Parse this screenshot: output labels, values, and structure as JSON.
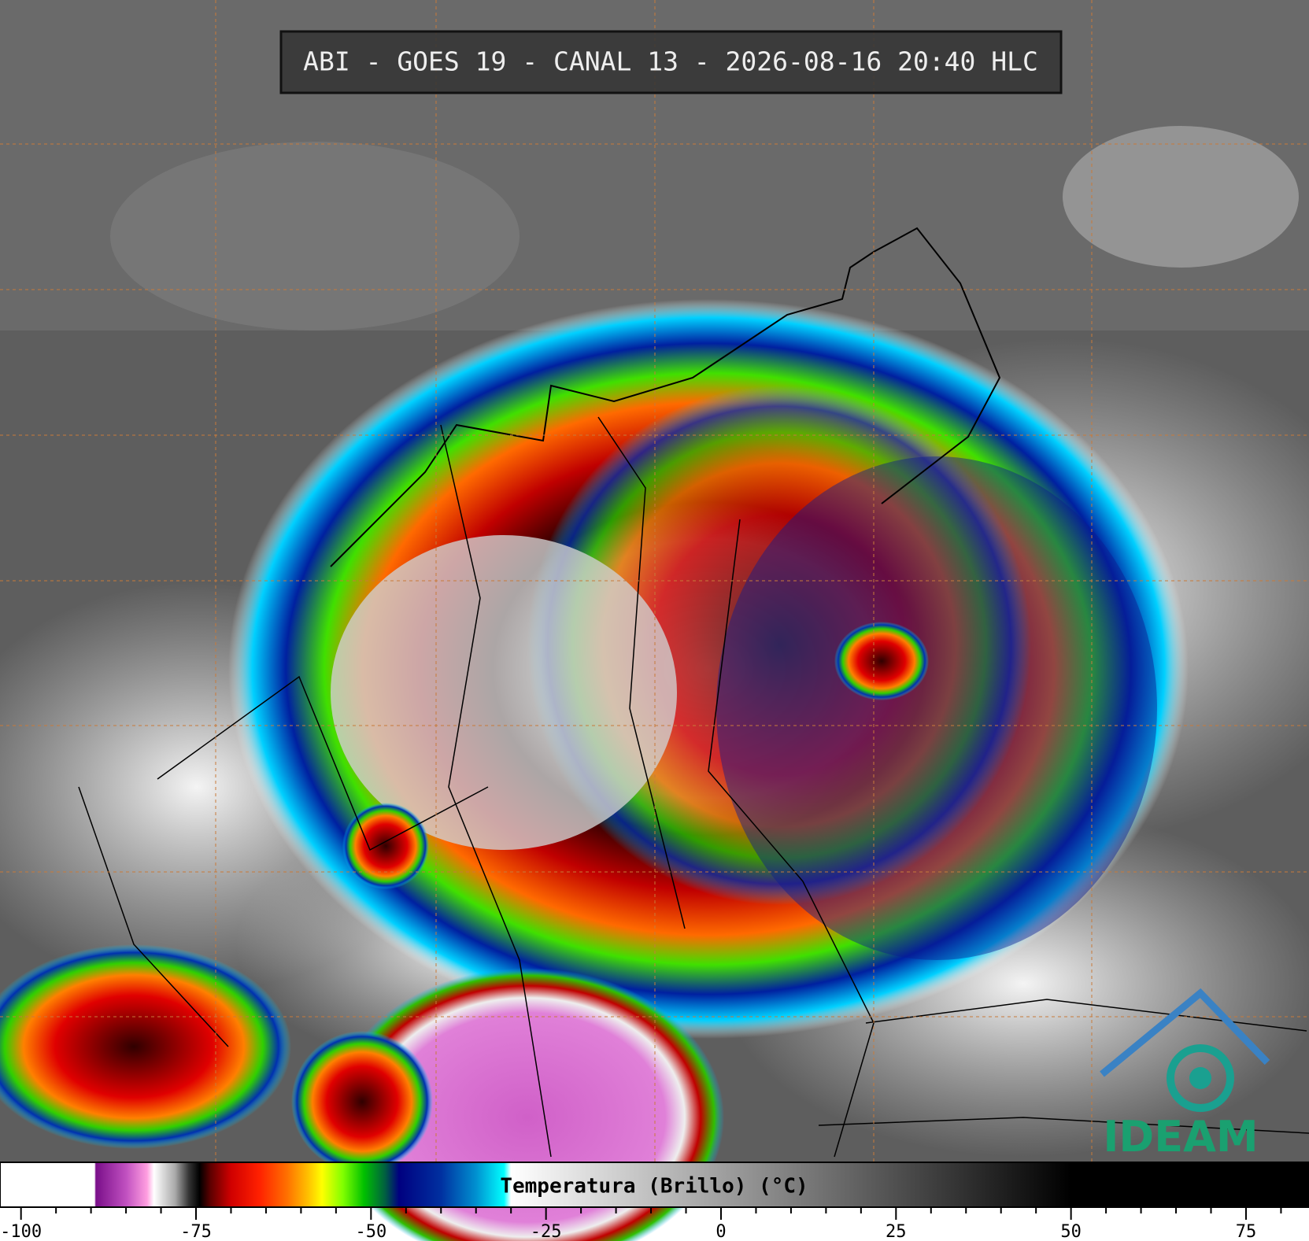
{
  "title": "ABI - GOES 19 - CANAL 13 - 2026-08-16 20:40 HLC",
  "logo": "IDEAM",
  "colorbar": {
    "label": "Temperatura (Brillo) (°C)",
    "xlim": [
      -103,
      84
    ],
    "xticks": [
      -100,
      -75,
      -50,
      -25,
      0,
      25,
      50,
      75
    ],
    "minor_xticks": [
      -95,
      -90,
      -85,
      -80,
      -70,
      -65,
      -60,
      -55,
      -45,
      -40,
      -35,
      -30,
      -20,
      -15,
      -10,
      -5,
      5,
      10,
      15,
      20,
      30,
      35,
      40,
      45,
      55,
      60,
      65,
      70,
      80
    ],
    "stops": [
      {
        "value": -103,
        "color": "#ffffff"
      },
      {
        "value": -89.5,
        "color": "#ffffff"
      },
      {
        "value": -89.3,
        "color": "#7a0f8a"
      },
      {
        "value": -85,
        "color": "#c050c0"
      },
      {
        "value": -82,
        "color": "#ff9ee0"
      },
      {
        "value": -81,
        "color": "#ffffff"
      },
      {
        "value": -78,
        "color": "#aaaaaa"
      },
      {
        "value": -76,
        "color": "#333333"
      },
      {
        "value": -74.5,
        "color": "#000000"
      },
      {
        "value": -73,
        "color": "#5a0000"
      },
      {
        "value": -70,
        "color": "#d00000"
      },
      {
        "value": -66,
        "color": "#ff2000"
      },
      {
        "value": -62,
        "color": "#ff7000"
      },
      {
        "value": -59,
        "color": "#ffc000"
      },
      {
        "value": -57,
        "color": "#ffff00"
      },
      {
        "value": -54,
        "color": "#80ff00"
      },
      {
        "value": -51,
        "color": "#00c000"
      },
      {
        "value": -48,
        "color": "#006040"
      },
      {
        "value": -46,
        "color": "#000080"
      },
      {
        "value": -40,
        "color": "#0030a0"
      },
      {
        "value": -35,
        "color": "#0090d0"
      },
      {
        "value": -31,
        "color": "#00ffff"
      },
      {
        "value": -30,
        "color": "#ffffff"
      },
      {
        "value": 50,
        "color": "#000000"
      },
      {
        "value": 84,
        "color": "#000000"
      }
    ]
  }
}
